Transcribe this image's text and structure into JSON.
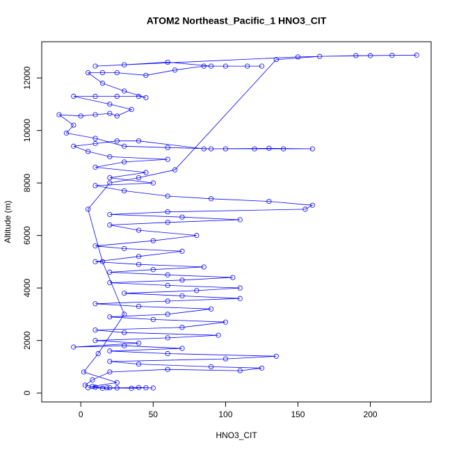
{
  "chart_data": {
    "type": "line",
    "markers": true,
    "title": "ATOM2 Northeast_Pacific_1 HNO3_CIT",
    "x_label": "HNO3_CIT",
    "y_label": "Altitude (m)",
    "color": "#0000ff",
    "x": [
      5,
      15,
      25,
      35,
      45,
      50,
      40,
      20,
      10,
      3,
      8,
      20,
      60,
      110,
      125,
      90,
      40,
      20,
      100,
      135,
      60,
      20,
      70,
      30,
      -5,
      40,
      10,
      60,
      95,
      30,
      10,
      70,
      100,
      50,
      20,
      60,
      90,
      40,
      10,
      60,
      110,
      70,
      30,
      80,
      110,
      60,
      20,
      70,
      105,
      60,
      20,
      50,
      85,
      40,
      10,
      40,
      70,
      30,
      10,
      50,
      80,
      40,
      20,
      60,
      110,
      70,
      20,
      60,
      155,
      160,
      130,
      90,
      60,
      30,
      10,
      50,
      20,
      45,
      10,
      30,
      60,
      20,
      5,
      -5,
      10,
      25,
      40,
      85,
      100,
      120,
      140,
      160,
      130,
      90,
      60,
      30,
      10,
      -10,
      -5,
      -15,
      0,
      10,
      20,
      25,
      35,
      20,
      -5,
      10,
      25,
      40,
      45,
      30,
      15,
      5,
      15,
      25,
      45,
      65,
      85,
      100,
      115,
      125,
      90,
      60,
      30,
      10,
      150,
      190,
      215,
      232,
      200,
      165,
      135,
      65,
      40,
      20,
      5,
      15,
      30,
      12,
      2,
      25,
      8,
      18
    ],
    "values": [
      200,
      180,
      190,
      180,
      200,
      190,
      210,
      200,
      220,
      300,
      500,
      800,
      900,
      850,
      950,
      1000,
      1100,
      1200,
      1300,
      1400,
      1500,
      1600,
      1700,
      1800,
      1750,
      1900,
      2000,
      2100,
      2200,
      2300,
      2400,
      2500,
      2700,
      2800,
      2900,
      3000,
      3200,
      3300,
      3400,
      3500,
      3600,
      3700,
      3800,
      3900,
      4000,
      4100,
      4200,
      4300,
      4400,
      4500,
      4600,
      4700,
      4800,
      4900,
      5000,
      5200,
      5400,
      5500,
      5600,
      5800,
      6000,
      6200,
      6400,
      6500,
      6600,
      6700,
      6800,
      6900,
      7000,
      7150,
      7300,
      7400,
      7500,
      7700,
      7900,
      8000,
      8200,
      8400,
      8600,
      8800,
      8900,
      9000,
      9200,
      9400,
      9500,
      9600,
      9600,
      9300,
      9300,
      9300,
      9300,
      9300,
      9320,
      9300,
      9350,
      9400,
      9700,
      9900,
      10200,
      10600,
      10550,
      10600,
      10650,
      10550,
      10800,
      11000,
      11300,
      11300,
      11300,
      11300,
      11250,
      11500,
      11800,
      12200,
      12200,
      12200,
      12100,
      12300,
      12450,
      12450,
      12450,
      12450,
      12450,
      12600,
      12500,
      12450,
      12800,
      12850,
      12860,
      12870,
      12850,
      12820,
      12700,
      8500,
      8200,
      8000,
      7000,
      5000,
      3000,
      1500,
      800,
      400,
      250,
      200
    ],
    "xlim": [
      -27,
      242
    ],
    "ylim": [
      -340,
      13380
    ],
    "xticks": [
      0,
      50,
      100,
      150,
      200
    ],
    "yticks": [
      0,
      2000,
      4000,
      6000,
      8000,
      10000,
      12000
    ]
  }
}
